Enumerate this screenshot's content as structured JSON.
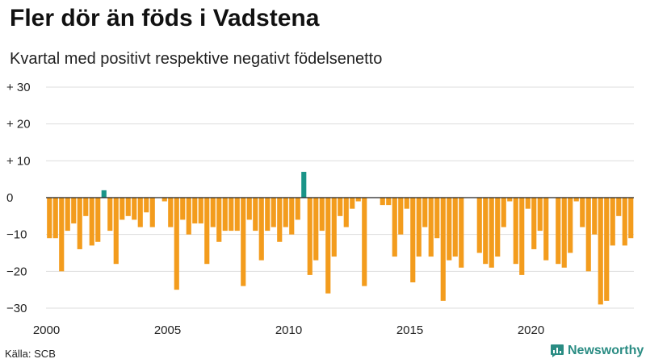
{
  "header": {
    "title": "Fler dör än föds i Vadstena",
    "subtitle": "Kvartal med positivt respektive negativt födelsenetto"
  },
  "footer": {
    "source": "Källa: SCB",
    "brand": "Newsworthy"
  },
  "colors": {
    "negative": "#f39c1d",
    "positive": "#1a9488",
    "grid": "#dddddd",
    "zero_line": "#222222",
    "brand": "#2a8c83"
  },
  "chart_data": {
    "type": "bar",
    "title": "Fler dör än föds i Vadstena",
    "subtitle": "Kvartal med positivt respektive negativt födelsenetto",
    "xlabel": "",
    "ylabel": "",
    "ylim": [
      -30,
      30
    ],
    "y_ticks": [
      30,
      20,
      10,
      0,
      -10,
      -20,
      -30
    ],
    "y_tick_labels": [
      "+ 30",
      "+ 20",
      "+ 10",
      "0",
      "−10",
      "−20",
      "−30"
    ],
    "x_ticks": [
      2000,
      2005,
      2010,
      2015,
      2020
    ],
    "x_tick_labels": [
      "2000",
      "2005",
      "2010",
      "2015",
      "2020"
    ],
    "start_year": 2000,
    "periods_per_year": 4,
    "grid": true,
    "values": [
      -11,
      -11,
      -20,
      -9,
      -7,
      -14,
      -5,
      -13,
      -12,
      2,
      -9,
      -18,
      -6,
      -5,
      -6,
      -8,
      -4,
      -8,
      0,
      -1,
      -8,
      -25,
      -6,
      -10,
      -7,
      -7,
      -18,
      -8,
      -12,
      -9,
      -9,
      -9,
      -24,
      -6,
      -9,
      -17,
      -9,
      -8,
      -12,
      -8,
      -10,
      -6,
      7,
      -21,
      -17,
      -9,
      -26,
      -16,
      -5,
      -8,
      -3,
      -1,
      -24,
      0,
      0,
      -2,
      -2,
      -16,
      -10,
      -3,
      -23,
      -16,
      -8,
      -16,
      -11,
      -28,
      -17,
      -16,
      -19,
      0,
      0,
      -15,
      -18,
      -19,
      -16,
      -8,
      -1,
      -18,
      -21,
      -3,
      -14,
      -9,
      -17,
      0,
      -18,
      -19,
      -15,
      -1,
      -8,
      -20,
      -10,
      -29,
      -28,
      -13,
      -5,
      -13,
      -11
    ]
  }
}
